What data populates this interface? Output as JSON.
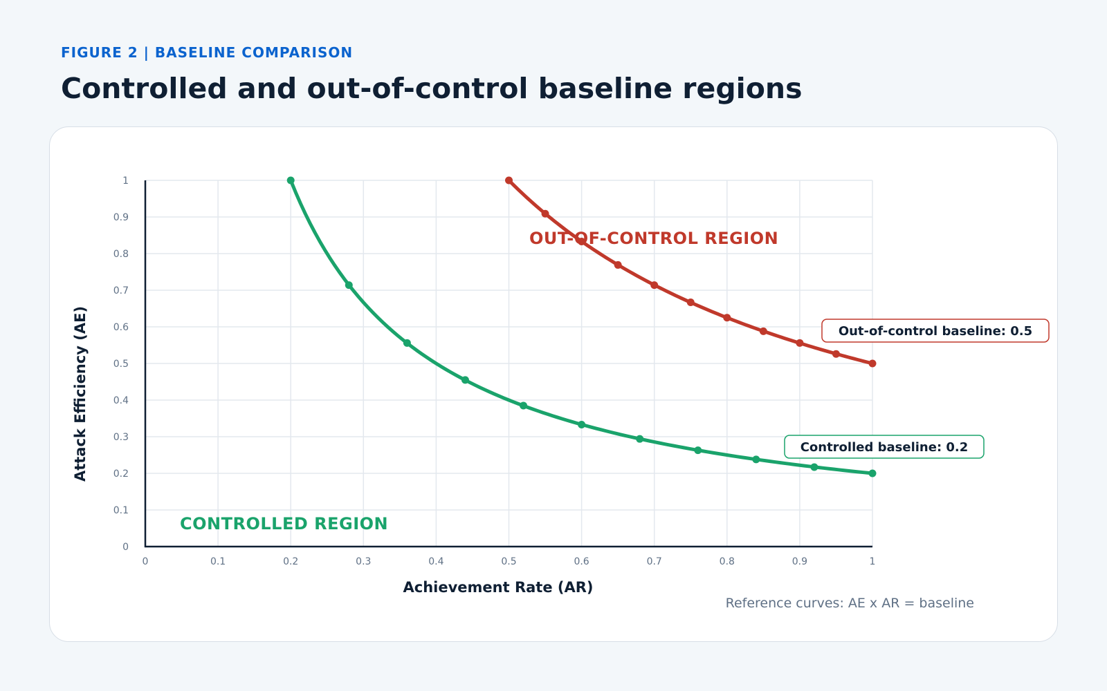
{
  "header": {
    "kicker": "FIGURE 2  |  BASELINE COMPARISON",
    "title": "Controlled and out-of-control baseline regions"
  },
  "chart_data": {
    "type": "line",
    "xlabel": "Achievement Rate (AR)",
    "ylabel": "Attack Efficiency (AE)",
    "xlim": [
      0,
      1
    ],
    "ylim": [
      0,
      1
    ],
    "x_ticks": [
      "0",
      "0.1",
      "0.2",
      "0.3",
      "0.4",
      "0.5",
      "0.6",
      "0.7",
      "0.8",
      "0.9",
      "1"
    ],
    "y_ticks": [
      "0",
      "0.1",
      "0.2",
      "0.3",
      "0.4",
      "0.5",
      "0.6",
      "0.7",
      "0.8",
      "0.9",
      "1"
    ],
    "grid": true,
    "series": [
      {
        "key": "controlled",
        "color": "#1aa36b",
        "baseline": 0.2,
        "x": [
          0.2,
          0.28,
          0.36,
          0.44,
          0.52,
          0.6,
          0.68,
          0.76,
          0.84,
          0.92,
          1.0
        ],
        "y": [
          1.0,
          0.714,
          0.556,
          0.455,
          0.385,
          0.333,
          0.294,
          0.263,
          0.238,
          0.217,
          0.2
        ]
      },
      {
        "key": "out_of_control",
        "color": "#c0392b",
        "baseline": 0.5,
        "x": [
          0.5,
          0.55,
          0.6,
          0.65,
          0.7,
          0.75,
          0.8,
          0.85,
          0.9,
          0.95,
          1.0
        ],
        "y": [
          1.0,
          0.909,
          0.833,
          0.769,
          0.714,
          0.667,
          0.625,
          0.588,
          0.556,
          0.526,
          0.5
        ]
      }
    ],
    "annotations": {
      "out_of_control_region": "OUT-OF-CONTROL REGION",
      "controlled_region": "CONTROLLED REGION",
      "out_of_control_callout": "Out-of-control baseline: 0.5",
      "controlled_callout": "Controlled baseline: 0.2",
      "note": "Reference curves: AE x AR = baseline"
    }
  }
}
